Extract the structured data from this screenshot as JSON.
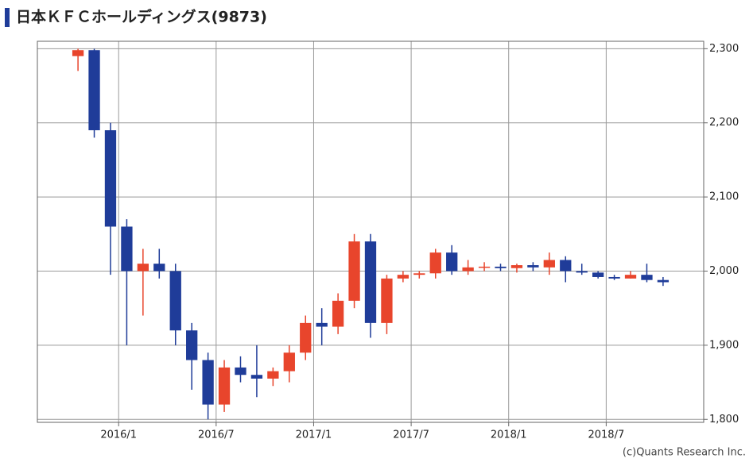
{
  "chart_data": {
    "type": "candlestick",
    "title": "日本ＫＦＣホールディングス(9873)",
    "credit": "(c)Quants Research Inc.",
    "x": [
      "2015/10",
      "2015/11",
      "2015/12",
      "2016/1",
      "2016/2",
      "2016/3",
      "2016/4",
      "2016/5",
      "2016/6",
      "2016/7",
      "2016/8",
      "2016/9",
      "2016/10",
      "2016/11",
      "2016/12",
      "2017/1",
      "2017/2",
      "2017/3",
      "2017/4",
      "2017/5",
      "2017/6",
      "2017/7",
      "2017/8",
      "2017/9",
      "2017/10",
      "2017/11",
      "2017/12",
      "2018/1",
      "2018/2",
      "2018/3",
      "2018/4",
      "2018/5",
      "2018/6",
      "2018/7",
      "2018/8",
      "2018/9",
      "2018/10"
    ],
    "open": [
      2290,
      2298,
      2190,
      2060,
      2000,
      2010,
      2000,
      1920,
      1880,
      1820,
      1870,
      1860,
      1855,
      1865,
      1890,
      1930,
      1925,
      1960,
      2040,
      1930,
      1990,
      1995,
      1997,
      2025,
      2000,
      2005,
      2006,
      2004,
      2008,
      2005,
      2015,
      2000,
      1998,
      1992,
      1990,
      1995,
      1988
    ],
    "high": [
      2300,
      2300,
      2200,
      2070,
      2030,
      2030,
      2010,
      1930,
      1890,
      1880,
      1885,
      1900,
      1870,
      1900,
      1940,
      1950,
      1970,
      2050,
      2050,
      1995,
      2000,
      2000,
      2030,
      2035,
      2015,
      2012,
      2010,
      2010,
      2012,
      2025,
      2020,
      2010,
      2000,
      1995,
      2000,
      2010,
      1992
    ],
    "low": [
      2270,
      2180,
      1995,
      1900,
      1940,
      1990,
      1900,
      1840,
      1800,
      1810,
      1850,
      1830,
      1845,
      1850,
      1880,
      1900,
      1915,
      1950,
      1910,
      1915,
      1985,
      1990,
      1990,
      1995,
      1995,
      2000,
      2000,
      1998,
      2000,
      1995,
      1985,
      1995,
      1990,
      1988,
      1990,
      1985,
      1980
    ],
    "close": [
      2298,
      2190,
      2060,
      2000,
      2010,
      2000,
      1920,
      1880,
      1820,
      1870,
      1860,
      1855,
      1865,
      1890,
      1930,
      1925,
      1960,
      2040,
      1930,
      1990,
      1995,
      1997,
      2025,
      2000,
      2005,
      2006,
      2004,
      2008,
      2005,
      2015,
      2000,
      1998,
      1992,
      1990,
      1995,
      1988,
      1985
    ],
    "up_color": "#e8452c",
    "down_color": "#1f3c99",
    "xlim": [
      "2015/8",
      "2019/1"
    ],
    "xticks": [
      "2016/1",
      "2016/7",
      "2017/1",
      "2017/7",
      "2018/1",
      "2018/7"
    ],
    "ylim": [
      1796,
      2310
    ],
    "yticks": [
      {
        "value": 1800,
        "label": "1,800"
      },
      {
        "value": 1900,
        "label": "1,900"
      },
      {
        "value": 2000,
        "label": "2,000"
      },
      {
        "value": 2100,
        "label": "2,100"
      },
      {
        "value": 2200,
        "label": "2,200"
      },
      {
        "value": 2300,
        "label": "2,300"
      }
    ],
    "grid": true
  }
}
